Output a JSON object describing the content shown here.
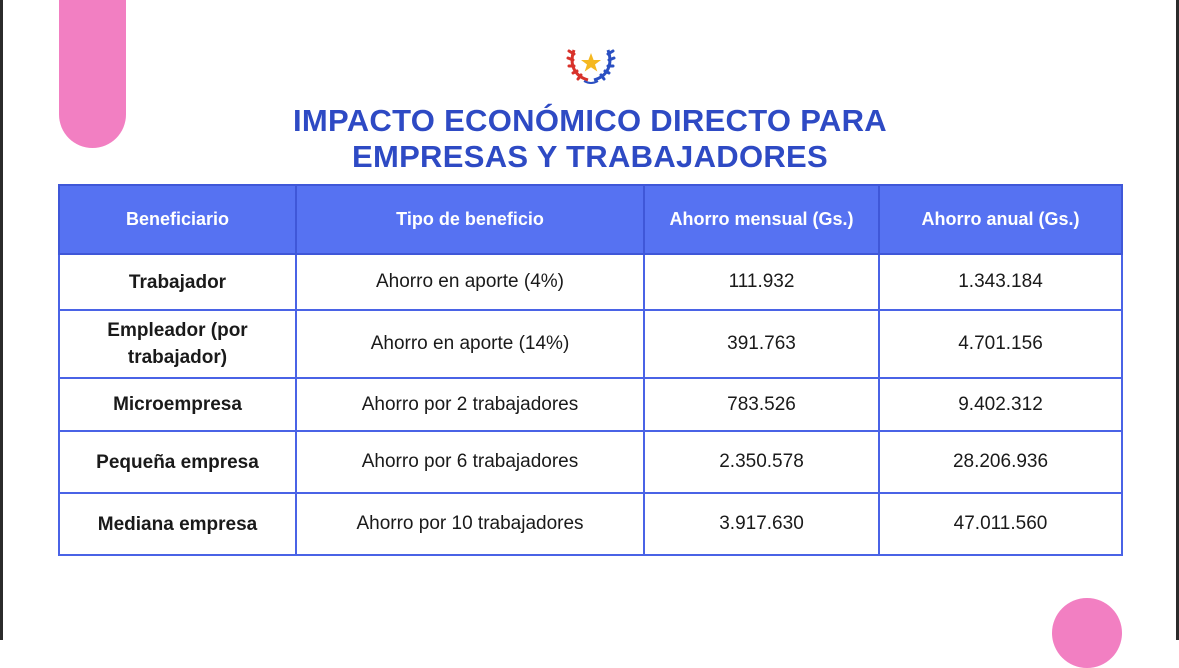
{
  "title": {
    "line1": "IMPACTO ECONÓMICO DIRECTO PARA",
    "line2": "EMPRESAS Y TRABAJADORES"
  },
  "emblem": {
    "icon": "national-coat-of-arms-icon"
  },
  "colors": {
    "accent": "#2e4ac4",
    "header_fill": "#5672f2",
    "border": "#4a63e6",
    "decoration": "#f27fc2"
  },
  "table": {
    "headers": [
      "Beneficiario",
      "Tipo de beneficio",
      "Ahorro mensual (Gs.)",
      "Ahorro anual (Gs.)"
    ],
    "rows": [
      [
        "Trabajador",
        "Ahorro en aporte (4%)",
        "111.932",
        "1.343.184"
      ],
      [
        "Empleador (por trabajador)",
        "Ahorro en aporte (14%)",
        "391.763",
        "4.701.156"
      ],
      [
        "Microempresa",
        "Ahorro por 2 trabajadores",
        "783.526",
        "9.402.312"
      ],
      [
        "Pequeña empresa",
        "Ahorro por 6 trabajadores",
        "2.350.578",
        "28.206.936"
      ],
      [
        "Mediana empresa",
        "Ahorro por 10 trabajadores",
        "3.917.630",
        "47.011.560"
      ]
    ]
  }
}
